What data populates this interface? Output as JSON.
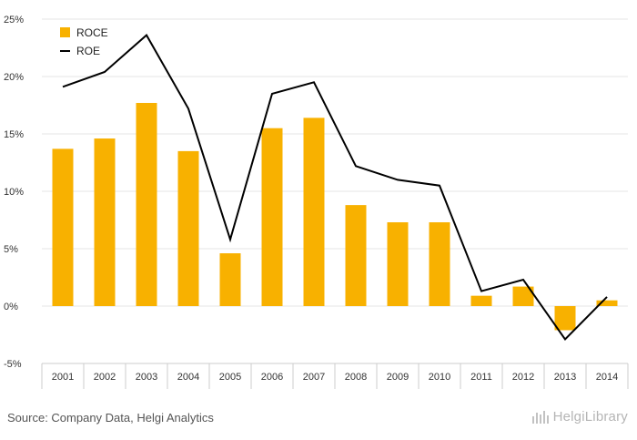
{
  "chart_data": {
    "type": "bar",
    "categories": [
      "2001",
      "2002",
      "2003",
      "2004",
      "2005",
      "2006",
      "2007",
      "2008",
      "2009",
      "2010",
      "2011",
      "2012",
      "2013",
      "2014"
    ],
    "series": [
      {
        "name": "ROCE",
        "type": "bar",
        "color": "#F8B100",
        "values": [
          13.7,
          14.6,
          17.7,
          13.5,
          4.6,
          15.5,
          16.4,
          8.8,
          7.3,
          7.3,
          0.9,
          1.7,
          -2.1,
          0.5
        ]
      },
      {
        "name": "ROE",
        "type": "line",
        "color": "#000000",
        "values": [
          19.1,
          20.4,
          23.6,
          17.2,
          5.8,
          18.5,
          19.5,
          12.2,
          11.0,
          10.5,
          1.3,
          2.3,
          -2.9,
          0.8
        ]
      }
    ],
    "ylim": [
      -5,
      25
    ],
    "y_ticks": [
      -5,
      0,
      5,
      10,
      15,
      20,
      25
    ],
    "y_tick_labels": [
      "-5%",
      "0%",
      "5%",
      "10%",
      "15%",
      "20%",
      "25%"
    ],
    "grid": true,
    "legend_position": "top-left",
    "title": "",
    "xlabel": "",
    "ylabel": ""
  },
  "footer": {
    "source": "Source: Company Data, Helgi Analytics",
    "brand": "HelgiLibrary",
    "brand_icon": "helgi-logo-icon"
  },
  "colors": {
    "bar": "#F8B100",
    "line": "#000000",
    "grid": "#e6e6e6",
    "axis": "#cccccc"
  }
}
